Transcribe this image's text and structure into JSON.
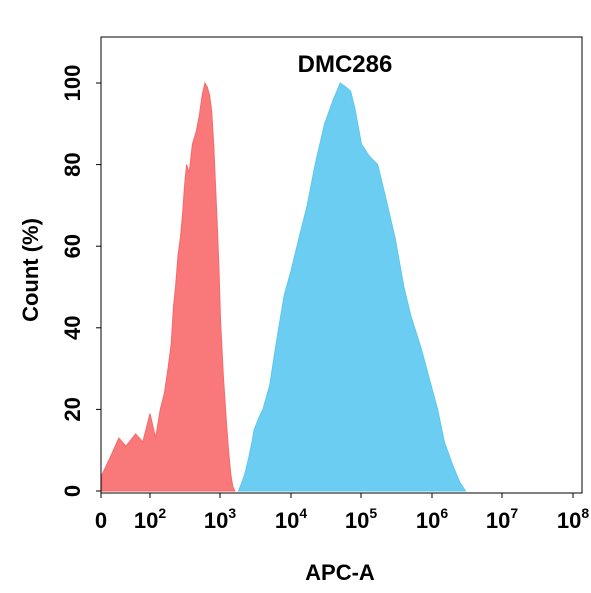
{
  "chart_data": {
    "type": "area",
    "title": "DMC286",
    "xlabel": "APC-A",
    "ylabel": "Count  (%)",
    "x_scale": "biexponential",
    "ylim": [
      0,
      105
    ],
    "x_ticks": [
      {
        "base": "0",
        "exp": ""
      },
      {
        "base": "10",
        "exp": "2"
      },
      {
        "base": "10",
        "exp": "3"
      },
      {
        "base": "10",
        "exp": "4"
      },
      {
        "base": "10",
        "exp": "5"
      },
      {
        "base": "10",
        "exp": "6"
      },
      {
        "base": "10",
        "exp": "7"
      },
      {
        "base": "10",
        "exp": "8"
      }
    ],
    "y_ticks": [
      "0",
      "20",
      "40",
      "60",
      "80",
      "100"
    ],
    "grid": false,
    "series": [
      {
        "color": "#f8696b",
        "points": [
          [
            0,
            4
          ],
          [
            20,
            9
          ],
          [
            35,
            13
          ],
          [
            50,
            11
          ],
          [
            70,
            14
          ],
          [
            85,
            12
          ],
          [
            100,
            19
          ],
          [
            120,
            13
          ],
          [
            140,
            20
          ],
          [
            160,
            24
          ],
          [
            180,
            30
          ],
          [
            200,
            36
          ],
          [
            215,
            45
          ],
          [
            230,
            50
          ],
          [
            250,
            58
          ],
          [
            270,
            62
          ],
          [
            290,
            68
          ],
          [
            310,
            75
          ],
          [
            330,
            80
          ],
          [
            360,
            78
          ],
          [
            400,
            85
          ],
          [
            450,
            88
          ],
          [
            500,
            92
          ],
          [
            550,
            97
          ],
          [
            600,
            100
          ],
          [
            650,
            99
          ],
          [
            700,
            97
          ],
          [
            750,
            93
          ],
          [
            800,
            85
          ],
          [
            850,
            75
          ],
          [
            900,
            65
          ],
          [
            950,
            55
          ],
          [
            1000,
            42
          ],
          [
            1100,
            28
          ],
          [
            1200,
            18
          ],
          [
            1300,
            10
          ],
          [
            1400,
            4
          ],
          [
            1500,
            1
          ],
          [
            1600,
            0
          ]
        ]
      },
      {
        "color": "#5bc8ef",
        "points": [
          [
            1800,
            0
          ],
          [
            2000,
            2
          ],
          [
            2200,
            4
          ],
          [
            2500,
            8
          ],
          [
            2800,
            12
          ],
          [
            3000,
            15
          ],
          [
            3500,
            18
          ],
          [
            4000,
            20
          ],
          [
            5000,
            26
          ],
          [
            6000,
            35
          ],
          [
            7000,
            42
          ],
          [
            8000,
            48
          ],
          [
            10000,
            54
          ],
          [
            13000,
            62
          ],
          [
            17000,
            70
          ],
          [
            22000,
            80
          ],
          [
            30000,
            90
          ],
          [
            40000,
            96
          ],
          [
            50000,
            100
          ],
          [
            60000,
            99
          ],
          [
            70000,
            98
          ],
          [
            80000,
            94
          ],
          [
            100000,
            85
          ],
          [
            130000,
            82
          ],
          [
            170000,
            80
          ],
          [
            220000,
            72
          ],
          [
            300000,
            62
          ],
          [
            400000,
            50
          ],
          [
            500000,
            43
          ],
          [
            700000,
            35
          ],
          [
            900000,
            28
          ],
          [
            1200000,
            20
          ],
          [
            1500000,
            12
          ],
          [
            2000000,
            6
          ],
          [
            2500000,
            2
          ],
          [
            3000000,
            0
          ]
        ]
      }
    ]
  }
}
